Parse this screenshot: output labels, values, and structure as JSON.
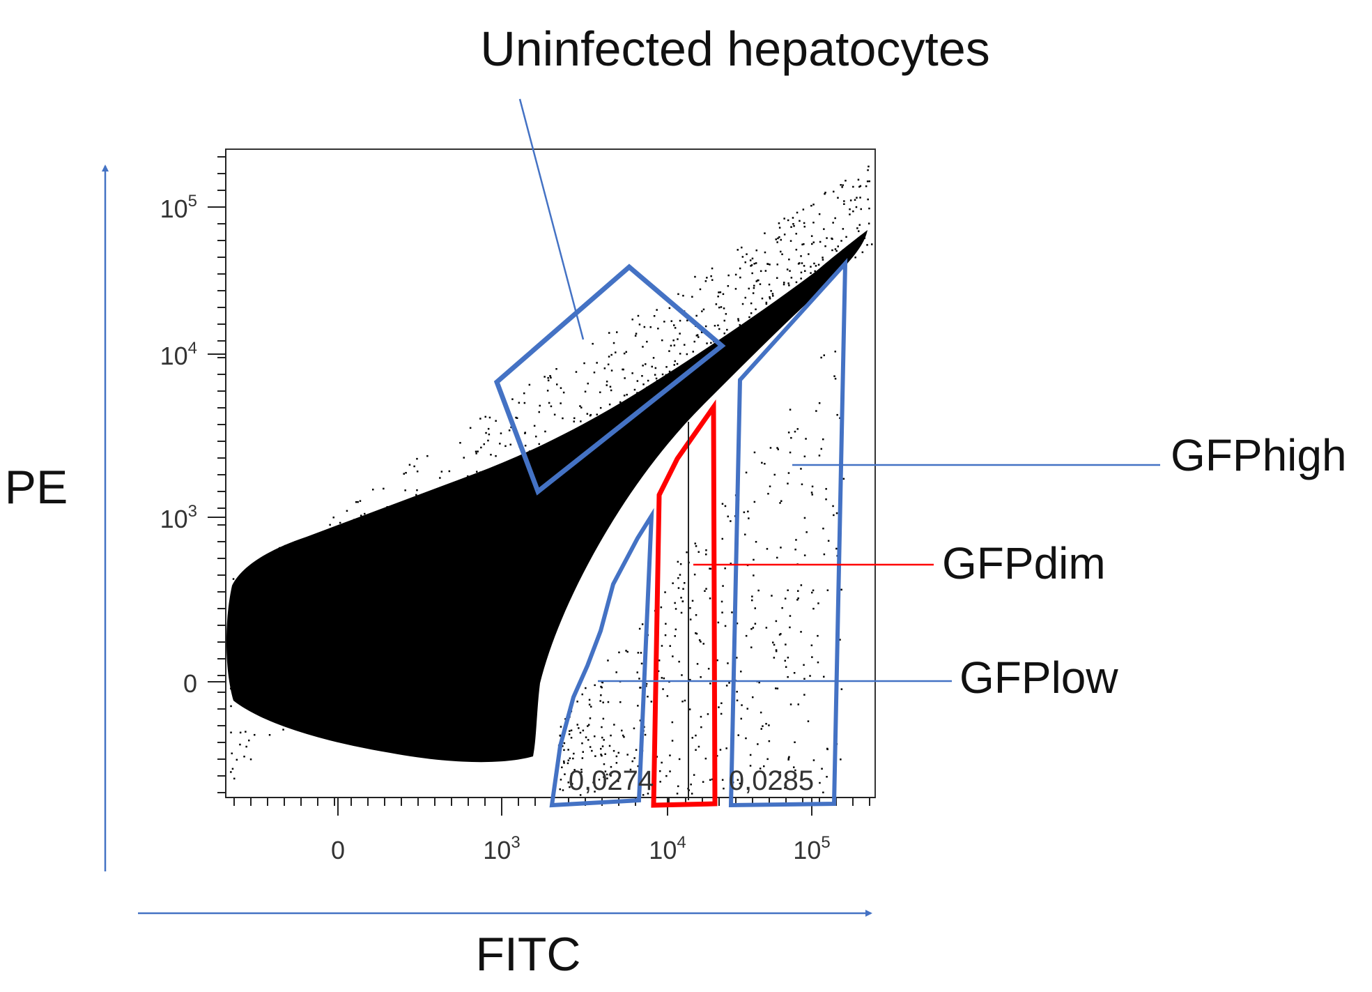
{
  "chart_data": {
    "type": "scatter",
    "title": "",
    "xlabel": "FITC",
    "ylabel": "PE",
    "x_scale": "biexponential",
    "y_scale": "biexponential",
    "x_tick_labels": [
      {
        "base": "0",
        "exp": ""
      },
      {
        "base": "10",
        "exp": "3"
      },
      {
        "base": "10",
        "exp": "4"
      },
      {
        "base": "10",
        "exp": "5"
      }
    ],
    "y_tick_labels": [
      {
        "base": "0",
        "exp": ""
      },
      {
        "base": "10",
        "exp": "3"
      },
      {
        "base": "10",
        "exp": "4"
      },
      {
        "base": "10",
        "exp": "5"
      }
    ],
    "gates": [
      {
        "name": "Uninfected hepatocytes",
        "color": "#4472c4"
      },
      {
        "name": "GFPlow",
        "color": "#4472c4",
        "frequency": "0,0274"
      },
      {
        "name": "GFPdim",
        "color": "#ff0000"
      },
      {
        "name": "GFPhigh",
        "color": "#4472c4",
        "frequency": "0,0285"
      }
    ],
    "grid": false,
    "legend": "none"
  },
  "colors": {
    "blue": "#4472c4",
    "red": "#ff0000",
    "dots": "#000000"
  }
}
